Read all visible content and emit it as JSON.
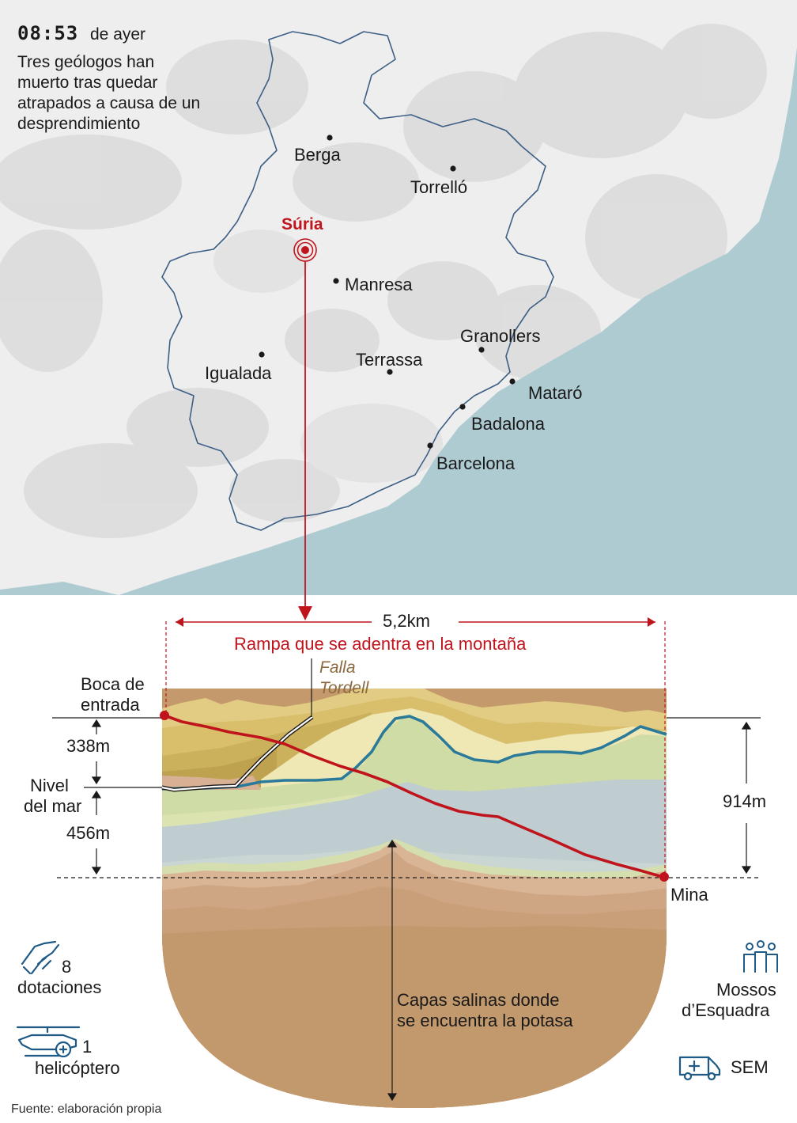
{
  "header": {
    "time": "08:53",
    "time_suffix": "de ayer",
    "headline": "Tres geólogos han muerto tras quedar atrapados a causa de un desprendimiento"
  },
  "map": {
    "highlight": {
      "name": "Súria"
    },
    "cities": [
      {
        "name": "Berga"
      },
      {
        "name": "Torrelló"
      },
      {
        "name": "Manresa"
      },
      {
        "name": "Igualada"
      },
      {
        "name": "Terrassa"
      },
      {
        "name": "Granollers"
      },
      {
        "name": "Mataró"
      },
      {
        "name": "Badalona"
      },
      {
        "name": "Barcelona"
      }
    ],
    "colors": {
      "sea": "#aecbd2",
      "land": "#eeeeee",
      "boundary": "#3d5f86",
      "accent": "#c0141d"
    }
  },
  "section": {
    "distance": "5,2km",
    "ramp_label": "Rampa que se adentra en la montaña",
    "fault_line1": "Falla",
    "fault_line2": "Tordell",
    "entrance_line1": "Boca de",
    "entrance_line2": "entrada",
    "sea_level_line1": "Nivel",
    "sea_level_line2": "del mar",
    "depth_above": "338m",
    "depth_below": "456m",
    "depth_total": "914m",
    "mine_label": "Mina",
    "salt_line1": "Capas salinas donde",
    "salt_line2": "se encuentra la potasa"
  },
  "resources": {
    "firefighters_count": "8",
    "firefighters_label": "dotaciones",
    "helicopter_count": "1",
    "helicopter_label": "helicóptero",
    "police_line1": "Mossos",
    "police_line2": "d’Esquadra",
    "ambulance_label": "SEM",
    "icons": [
      "handshake-icon",
      "helicopter-icon",
      "people-icon",
      "ambulance-icon"
    ],
    "icon_color": "#1f5a86"
  },
  "footer": {
    "source": "Fuente: elaboración propia"
  }
}
